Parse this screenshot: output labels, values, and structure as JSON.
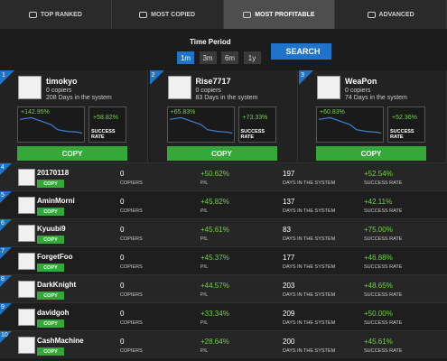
{
  "tabs": [
    "TOP RANKED",
    "MOST COPIED",
    "MOST PROFITABLE",
    "ADVANCED"
  ],
  "filter": {
    "label": "Time Period",
    "periods": [
      "1m",
      "3m",
      "6m",
      "1y"
    ],
    "search": "SEARCH"
  },
  "labels": {
    "copy": "COPY",
    "success_rate": "SUCCESS RATE",
    "copiers": "COPIERS",
    "pl": "P/L",
    "days": "DAYS IN THE SYSTEM"
  },
  "top": [
    {
      "rank": "1",
      "name": "timokyo",
      "copiers": "0 copiers",
      "days": "208 Days in the system",
      "pl": "+142.95%",
      "success": "+58.82%"
    },
    {
      "rank": "2",
      "name": "Rise7717",
      "copiers": "0 copiers",
      "days": "83 Days in the system",
      "pl": "+65.83%",
      "success": "+73.33%"
    },
    {
      "rank": "3",
      "name": "WeaPon",
      "copiers": "0 copiers",
      "days": "74 Days in the system",
      "pl": "+60.83%",
      "success": "+52.36%"
    }
  ],
  "list": [
    {
      "rank": "4",
      "name": "20170118",
      "copiers": "0",
      "pl": "+50.62%",
      "days": "197",
      "success": "+52.54%"
    },
    {
      "rank": "5",
      "name": "AminMorni",
      "copiers": "0",
      "pl": "+45.82%",
      "days": "137",
      "success": "+42.11%"
    },
    {
      "rank": "6",
      "name": "Kyuubi9",
      "copiers": "0",
      "pl": "+45.61%",
      "days": "83",
      "success": "+75.00%"
    },
    {
      "rank": "7",
      "name": "ForgetFoo",
      "copiers": "0",
      "pl": "+45.37%",
      "days": "177",
      "success": "+46.88%"
    },
    {
      "rank": "8",
      "name": "DarkKnight",
      "copiers": "0",
      "pl": "+44.57%",
      "days": "203",
      "success": "+48.65%"
    },
    {
      "rank": "9",
      "name": "davidgoh",
      "copiers": "0",
      "pl": "+33.34%",
      "days": "209",
      "success": "+50.00%"
    },
    {
      "rank": "10",
      "name": "CashMachine",
      "copiers": "0",
      "pl": "+28.64%",
      "days": "200",
      "success": "+45.61%"
    }
  ]
}
